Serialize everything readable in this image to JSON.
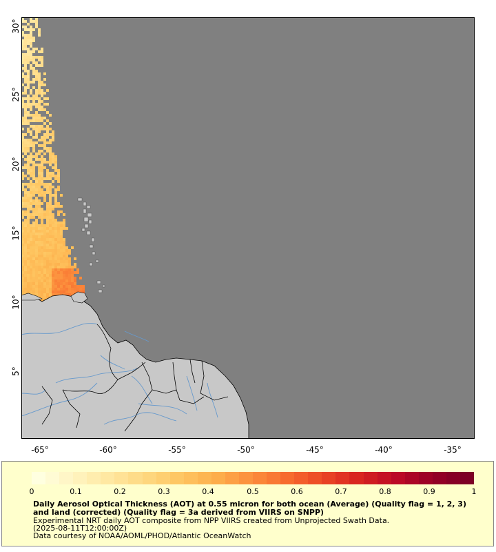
{
  "map": {
    "lat_labels": [
      "30°",
      "25°",
      "20°",
      "15°",
      "10°",
      "5°"
    ],
    "lon_labels": [
      "-65°",
      "-60°",
      "-55°",
      "-50°",
      "-45°",
      "-40°",
      "-35°"
    ],
    "colors": {
      "no_data": "#808080",
      "land": "#c8c8c8",
      "coast": "#000000",
      "rivers": "#6699cc",
      "legend_bg": "#ffffcc"
    }
  },
  "colorbar": {
    "ticks": [
      "0",
      "0.1",
      "0.2",
      "0.3",
      "0.4",
      "0.5",
      "0.6",
      "0.7",
      "0.8",
      "0.9",
      "1"
    ],
    "colors": [
      "#ffffe0",
      "#fff4c0",
      "#ffe7a0",
      "#fed880",
      "#fec560",
      "#fdae4b",
      "#fc8d3c",
      "#f76a2e",
      "#eb4525",
      "#d7231f",
      "#bd0a26",
      "#980026",
      "#7d0026"
    ]
  },
  "legend": {
    "title": "Daily Aerosol Optical Thickness (AOT) at 0.55 micron for both ocean (Average) (Quality flag = 1, 2, 3) and land (corrected) (Quality flag = 3a derived from VIIRS on SNPP)",
    "line1": "Experimental NRT daily AOT composite from NPP VIIRS created from Unprojected Swath Data.",
    "line2": "(2025-08-11T12:00:00Z)",
    "line3": "Data courtesy of NOAA/AOML/PHOD/Atlantic OceanWatch"
  }
}
